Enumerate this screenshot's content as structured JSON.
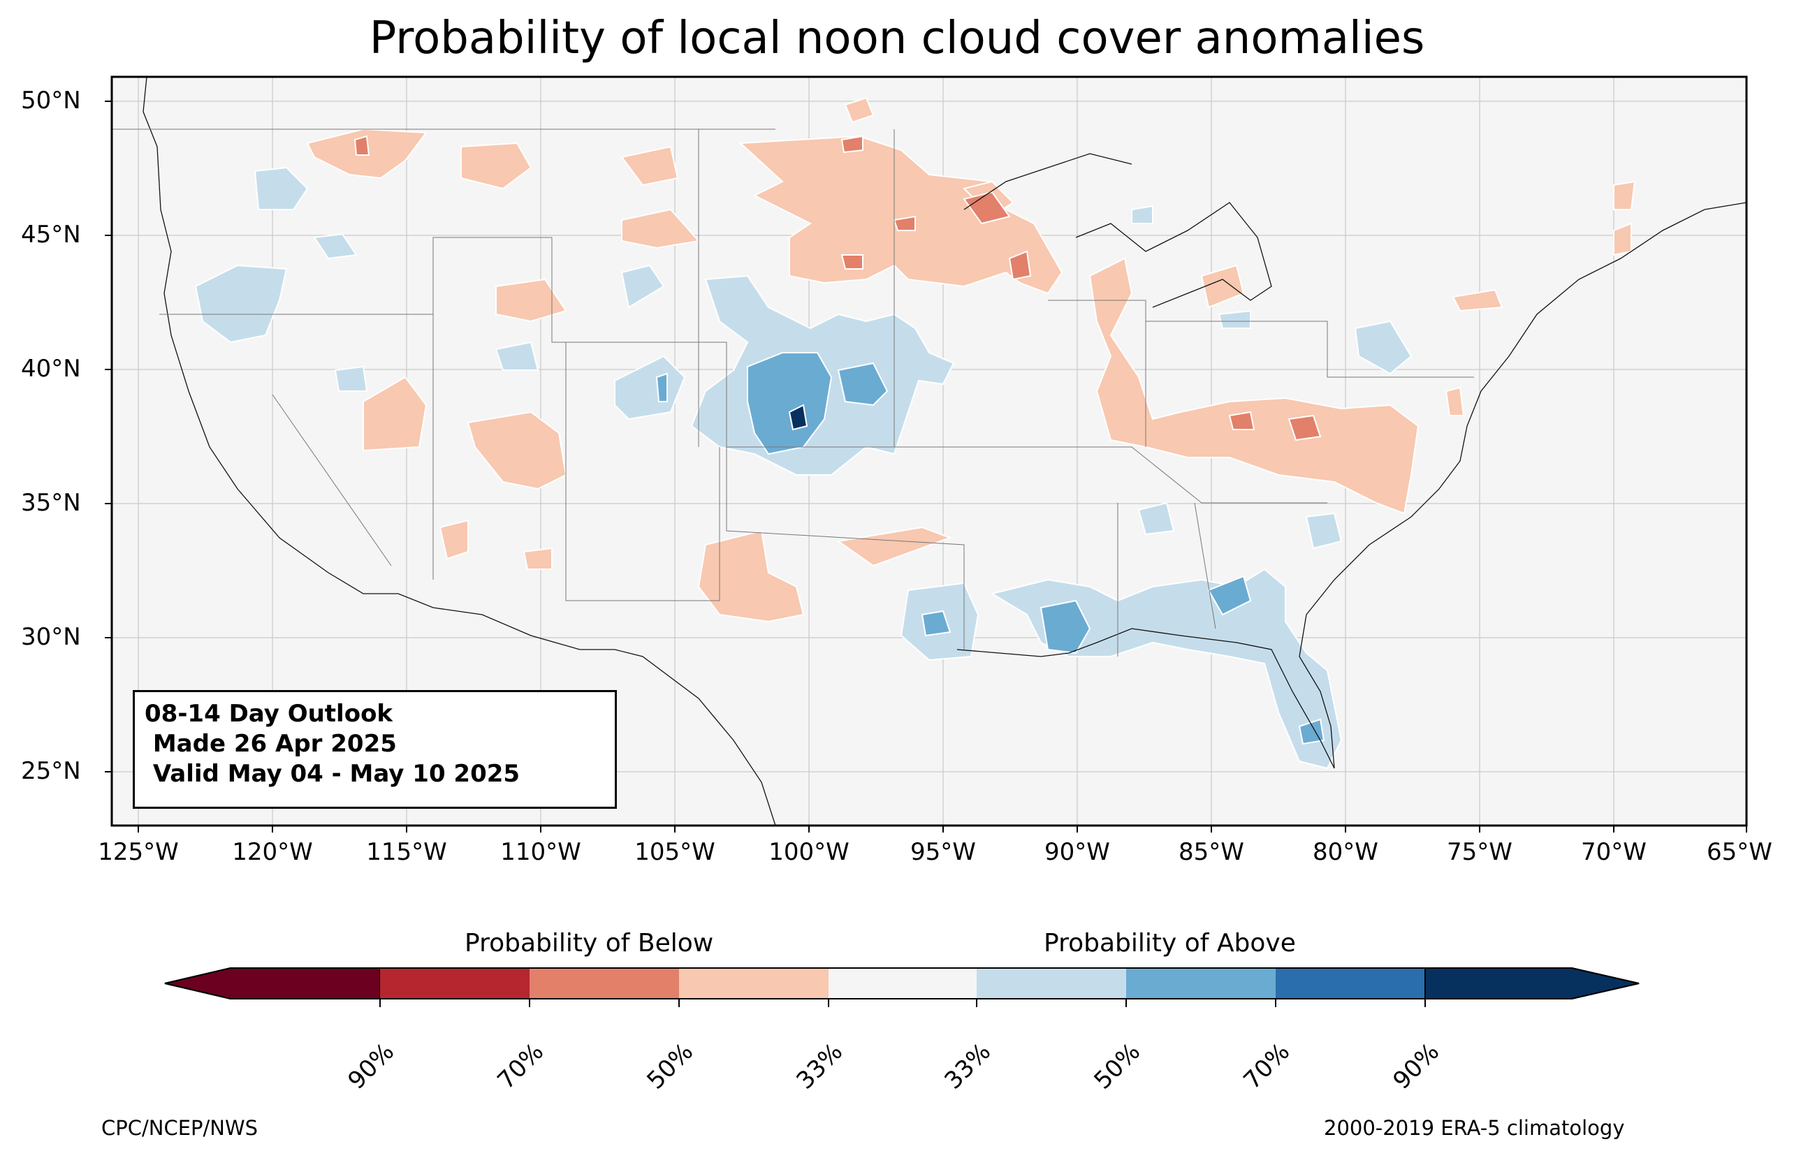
{
  "title": "Probability of local noon cloud cover anomalies",
  "map": {
    "lat_labels": [
      "50°N",
      "45°N",
      "40°N",
      "35°N",
      "30°N",
      "25°N"
    ],
    "lon_labels": [
      "125°W",
      "120°W",
      "115°W",
      "110°W",
      "105°W",
      "100°W",
      "95°W",
      "90°W",
      "85°W",
      "80°W",
      "75°W",
      "70°W",
      "65°W"
    ],
    "extent": {
      "lon": [
        -126,
        -65
      ],
      "lat": [
        23,
        51
      ]
    },
    "background_color": "#f5f5f5"
  },
  "outlook": {
    "line1": "08-14 Day Outlook",
    "line2": " Made 26 Apr 2025",
    "line3": " Valid May 04 - May 10 2025"
  },
  "colorbar": {
    "below_label": "Probability of Below",
    "above_label": "Probability of Above",
    "colors": [
      "#67001f",
      "#b2182b",
      "#d6604d",
      "#f4a582",
      "#f7f7f7",
      "#92c5de",
      "#4393c3",
      "#2166ac",
      "#053061"
    ],
    "display_colors": [
      "#6b0020",
      "#b5262f",
      "#e2806a",
      "#f8c8b0",
      "#f5f5f5",
      "#c5ddeb",
      "#6aabd2",
      "#2b6eae",
      "#06305e"
    ],
    "tick_labels": [
      "90%",
      "70%",
      "50%",
      "33%",
      "33%",
      "50%",
      "70%",
      "90%"
    ]
  },
  "footer": {
    "left": "CPC/NCEP/NWS",
    "right": "2000-2019 ERA-5 climatology"
  }
}
